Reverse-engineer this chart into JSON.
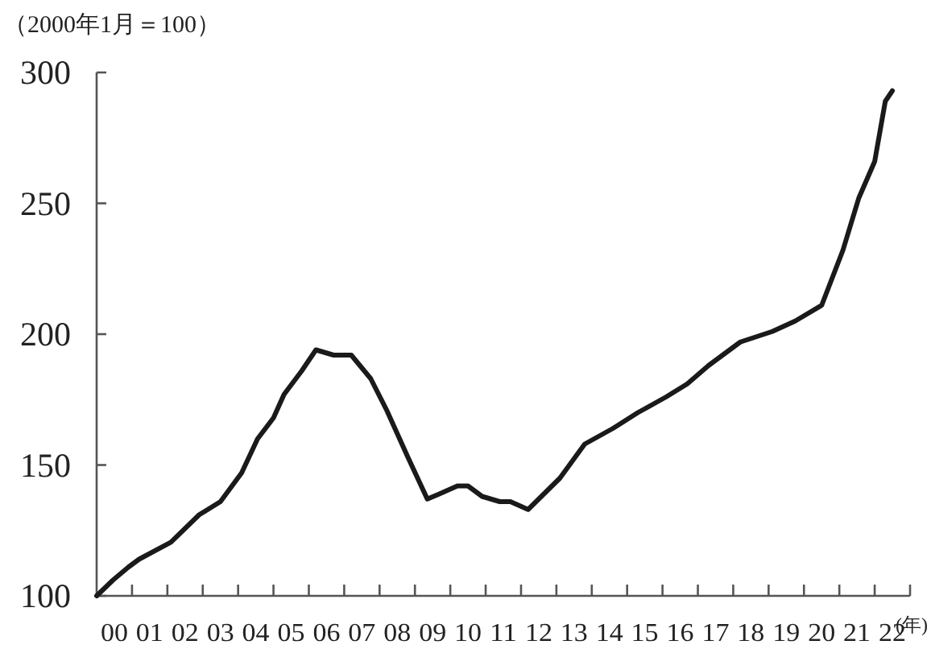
{
  "chart_data": {
    "type": "line",
    "ylabel": "（2000年1月＝100）",
    "xlabel": "(年)",
    "x": [
      -0.5,
      -0.04,
      0.4,
      0.7,
      1.6,
      2.4,
      3.0,
      3.6,
      4.05,
      4.5,
      4.8,
      5.3,
      5.7,
      6.2,
      6.7,
      7.25,
      7.7,
      8.3,
      8.85,
      9.2,
      9.7,
      10.0,
      10.4,
      10.9,
      11.2,
      11.7,
      12.0,
      12.6,
      13.3,
      14.1,
      14.8,
      15.6,
      16.2,
      16.8,
      17.7,
      18.6,
      19.25,
      20.0,
      20.6,
      21.05,
      21.5,
      21.8,
      22.0
    ],
    "series": [
      {
        "color": "#1a1a1a",
        "values": [
          100,
          106,
          111,
          114,
          120.5,
          131,
          136,
          147,
          160,
          168,
          177,
          186,
          194,
          192,
          192,
          183,
          171,
          153,
          137,
          139,
          142,
          142,
          138,
          136,
          136,
          133,
          137,
          145,
          158,
          164,
          170,
          176,
          181,
          188,
          197,
          201,
          205,
          211,
          232,
          252,
          266,
          289,
          293
        ]
      }
    ],
    "xlim": [
      -0.5,
      22.5
    ],
    "xticks": [
      {
        "value": 0,
        "label": "00"
      },
      {
        "value": 1,
        "label": "01"
      },
      {
        "value": 2,
        "label": "02"
      },
      {
        "value": 3,
        "label": "03"
      },
      {
        "value": 4,
        "label": "04"
      },
      {
        "value": 5,
        "label": "05"
      },
      {
        "value": 6,
        "label": "06"
      },
      {
        "value": 7,
        "label": "07"
      },
      {
        "value": 8,
        "label": "08"
      },
      {
        "value": 9,
        "label": "09"
      },
      10,
      11,
      12,
      13,
      14,
      15,
      16,
      17,
      18,
      19,
      20,
      21,
      22,
      {
        "value": 0.5,
        "label": null
      },
      {
        "value": 1.5,
        "label": null
      },
      {
        "value": 2.5,
        "label": null
      },
      {
        "value": 3.5,
        "label": null
      },
      {
        "value": 4.5,
        "label": null
      },
      {
        "value": 5.5,
        "label": null
      },
      {
        "value": 6.5,
        "label": null
      },
      {
        "value": 7.5,
        "label": null
      },
      {
        "value": 8.5,
        "label": null
      },
      {
        "value": 9.5,
        "label": null
      },
      {
        "value": 10.5,
        "label": null
      },
      {
        "value": 11.5,
        "label": null
      },
      {
        "value": 12.5,
        "label": null
      },
      {
        "value": 13.5,
        "label": null
      },
      {
        "value": 14.5,
        "label": null
      },
      {
        "value": 15.5,
        "label": null
      },
      {
        "value": 16.5,
        "label": null
      },
      {
        "value": 17.5,
        "label": null
      },
      {
        "value": 18.5,
        "label": null
      },
      {
        "value": 19.5,
        "label": null
      },
      {
        "value": 20.5,
        "label": null
      },
      {
        "value": 21.5,
        "label": null
      },
      {
        "value": 22.5,
        "label": null
      }
    ],
    "ylim": [
      100,
      300
    ],
    "yticks": [
      100,
      150,
      200,
      250,
      300
    ],
    "marker": "none",
    "line_style": "solid"
  }
}
